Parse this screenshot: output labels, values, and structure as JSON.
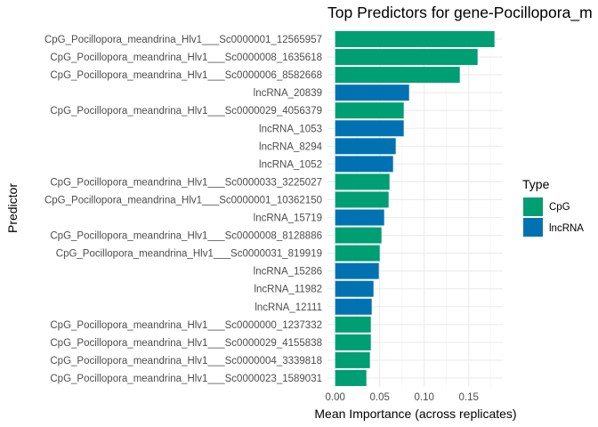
{
  "chart_data": {
    "type": "bar",
    "orientation": "horizontal",
    "title": "Top Predictors for gene-Pocillopora_m",
    "xlabel": "Mean Importance (across replicates)",
    "ylabel": "Predictor",
    "xlim": [
      0,
      0.18
    ],
    "xticks": [
      "0.00",
      "0.05",
      "0.10",
      "0.15"
    ],
    "xtick_values": [
      0,
      0.05,
      0.1,
      0.15
    ],
    "grid": true,
    "legend": {
      "title": "Type",
      "placement": "right",
      "entries": [
        "CpG",
        "lncRNA"
      ]
    },
    "colors": {
      "CpG": "#009E73",
      "lncRNA": "#0072B2"
    },
    "categories": [
      "CpG_Pocillopora_meandrina_Hlv1___Sc0000001_12565957",
      "CpG_Pocillopora_meandrina_Hlv1___Sc0000008_1635618",
      "CpG_Pocillopora_meandrina_Hlv1___Sc0000006_8582668",
      "lncRNA_20839",
      "CpG_Pocillopora_meandrina_Hlv1___Sc0000029_4056379",
      "lncRNA_1053",
      "lncRNA_8294",
      "lncRNA_1052",
      "CpG_Pocillopora_meandrina_Hlv1___Sc0000033_3225027",
      "CpG_Pocillopora_meandrina_Hlv1___Sc0000001_10362150",
      "lncRNA_15719",
      "CpG_Pocillopora_meandrina_Hlv1___Sc0000008_8128886",
      "CpG_Pocillopora_meandrina_Hlv1___Sc0000031_819919",
      "lncRNA_15286",
      "lncRNA_11982",
      "lncRNA_12111",
      "CpG_Pocillopora_meandrina_Hlv1___Sc0000000_1237332",
      "CpG_Pocillopora_meandrina_Hlv1___Sc0000029_4155838",
      "CpG_Pocillopora_meandrina_Hlv1___Sc0000004_3339818",
      "CpG_Pocillopora_meandrina_Hlv1___Sc0000023_1589031"
    ],
    "types": [
      "CpG",
      "CpG",
      "CpG",
      "lncRNA",
      "CpG",
      "lncRNA",
      "lncRNA",
      "lncRNA",
      "CpG",
      "CpG",
      "lncRNA",
      "CpG",
      "CpG",
      "lncRNA",
      "lncRNA",
      "lncRNA",
      "CpG",
      "CpG",
      "CpG",
      "CpG"
    ],
    "values": [
      0.179,
      0.16,
      0.14,
      0.083,
      0.077,
      0.077,
      0.068,
      0.065,
      0.061,
      0.06,
      0.055,
      0.052,
      0.05,
      0.049,
      0.043,
      0.041,
      0.04,
      0.04,
      0.039,
      0.035
    ]
  }
}
